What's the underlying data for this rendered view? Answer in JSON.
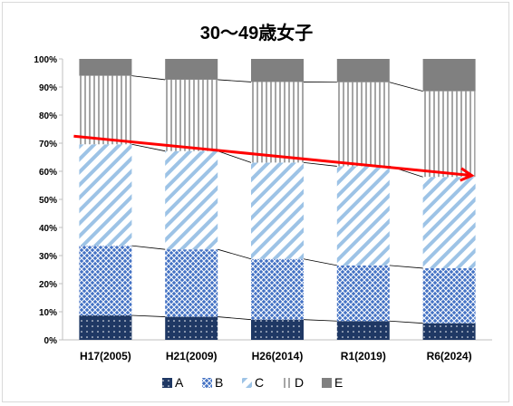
{
  "chart_data": {
    "type": "bar",
    "stacked": true,
    "percent": true,
    "title": "30～49歳女子",
    "categories": [
      "H17(2005)",
      "H21(2009)",
      "H26(2014)",
      "R1(2019)",
      "R6(2024)"
    ],
    "series": [
      {
        "name": "A",
        "values": [
          8.7,
          8.2,
          7.2,
          6.7,
          5.9
        ],
        "color": "#1f3864",
        "pattern": "dots"
      },
      {
        "name": "B",
        "values": [
          24.8,
          24.0,
          21.6,
          19.8,
          19.6
        ],
        "color": "#4472c4",
        "pattern": "diamond-grid"
      },
      {
        "name": "C",
        "values": [
          36.1,
          35.0,
          34.3,
          35.3,
          32.5
        ],
        "color": "#9dc3e6",
        "pattern": "diagonal"
      },
      {
        "name": "D",
        "values": [
          24.4,
          25.4,
          28.7,
          29.9,
          30.5
        ],
        "color": "#a6a6a6",
        "pattern": "vertical"
      },
      {
        "name": "E",
        "values": [
          6.0,
          7.4,
          8.2,
          8.3,
          11.5
        ],
        "color": "#808080",
        "pattern": "solid"
      }
    ],
    "ylim": [
      0,
      100
    ],
    "y_ticks": [
      "0%",
      "10%",
      "20%",
      "30%",
      "40%",
      "50%",
      "60%",
      "70%",
      "80%",
      "90%",
      "100%"
    ],
    "grid": false,
    "legend_position": "bottom",
    "connector_lines": true,
    "trend_arrow": {
      "from": [
        0,
        72.5
      ],
      "to": [
        4,
        58.5
      ],
      "color": "#ff0000"
    }
  }
}
